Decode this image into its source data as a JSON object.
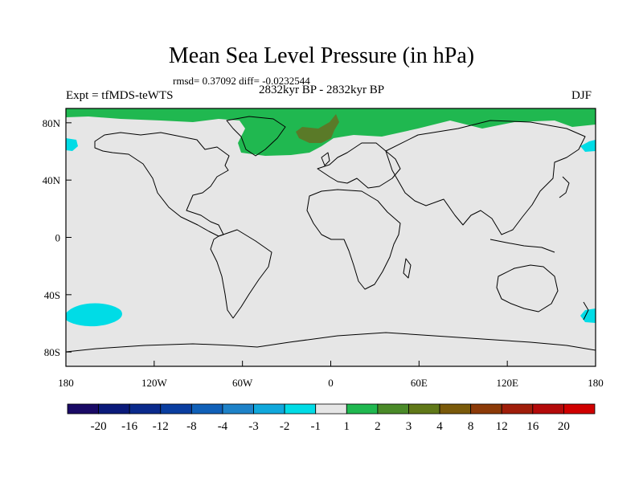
{
  "title": "Mean Sea Level Pressure (in hPa)",
  "stats_line": "rmsd= 0.37092 diff= -0.0232544",
  "experiment": "Expt = tfMDS-teWTS",
  "period": "2832kyr BP - 2832kyr BP",
  "season": "DJF",
  "map": {
    "projection": "cylindrical-equidistant",
    "lat_range": [
      -90,
      90
    ],
    "lon_range": [
      -180,
      180
    ],
    "background_color": "#e6e6e6",
    "lat_labels": [
      {
        "value": 80,
        "label": "80N"
      },
      {
        "value": 40,
        "label": "40N"
      },
      {
        "value": 0,
        "label": "0"
      },
      {
        "value": -40,
        "label": "40S"
      },
      {
        "value": -80,
        "label": "80S"
      }
    ],
    "lon_labels": [
      {
        "value": -180,
        "label": "180"
      },
      {
        "value": -120,
        "label": "120W"
      },
      {
        "value": -60,
        "label": "60W"
      },
      {
        "value": 0,
        "label": "0"
      },
      {
        "value": 60,
        "label": "60E"
      },
      {
        "value": 120,
        "label": "120E"
      },
      {
        "value": 180,
        "label": "180"
      }
    ],
    "anomaly_regions": [
      {
        "name": "arctic-positive-anomaly",
        "level": "1 to 2",
        "color": "#20b850"
      },
      {
        "name": "north-atlantic-strong-anomaly",
        "level": "3 to 4",
        "color": "#5a7a28"
      },
      {
        "name": "southern-pacific-negative-anomaly",
        "level": "-2 to -1",
        "color": "#00dce6"
      },
      {
        "name": "north-pacific-negative-anomaly-west",
        "level": "-2 to -1",
        "color": "#00dce6"
      },
      {
        "name": "north-pacific-negative-anomaly-east",
        "level": "-2 to -1",
        "color": "#00dce6"
      },
      {
        "name": "south-indian-negative-anomaly-edge",
        "level": "-2 to -1",
        "color": "#00dce6"
      }
    ]
  },
  "colorbar": {
    "labels": [
      "-20",
      "-16",
      "-12",
      "-8",
      "-4",
      "-3",
      "-2",
      "-1",
      "1",
      "2",
      "3",
      "4",
      "8",
      "12",
      "16",
      "20"
    ],
    "colors": [
      "#1a0a66",
      "#0a1a7a",
      "#0a2a8c",
      "#0a3ea0",
      "#1060b8",
      "#1e82c8",
      "#10a8dc",
      "#00dce6",
      "#e6e6e6",
      "#20b850",
      "#4a8a28",
      "#607818",
      "#7a5a0a",
      "#8c3a08",
      "#a01e0a",
      "#b40a0a",
      "#d00000"
    ]
  }
}
